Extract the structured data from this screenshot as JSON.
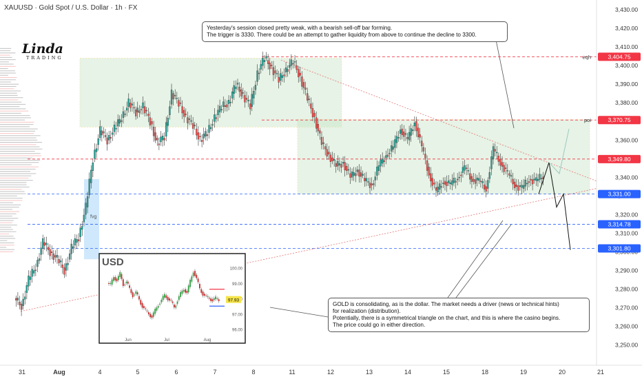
{
  "header": {
    "title": "XAUUSD · Gold Spot / U.S. Dollar · 1h · FX"
  },
  "logo": {
    "text": "Linda",
    "subtitle": "TRADING"
  },
  "annotations": {
    "top": [
      "Yesterday's session closed pretty weak, with a bearish sell-off bar forming.",
      "The trigger is 3330. There could be an attempt to gather liquidity from above to continue the decline to 3300."
    ],
    "bottom": [
      "GOLD is consolidating, as is the dollar. The market needs a driver (news or technical hints)",
      "for realization (distribution).",
      "Potentially, there is a symmetrical triangle on the chart, and this is where the casino begins.",
      "The price could go in either direction."
    ]
  },
  "colors": {
    "up": "#26a69a",
    "down": "#ef5350",
    "zone": "#c8e6c9",
    "level_red": "#f23645",
    "level_blue": "#2962ff",
    "axis_text": "#333333"
  },
  "chart_data": {
    "type": "candlestick",
    "symbol": "XAUUSD",
    "timeframe": "1h",
    "y_ticks": [
      3250,
      3260,
      3270,
      3280,
      3290,
      3300,
      3310,
      3320,
      3330,
      3340,
      3350,
      3360,
      3370,
      3380,
      3390,
      3400,
      3410,
      3420,
      3430
    ],
    "y_tick_labels": [
      "3,250.00",
      "3,260.00",
      "3,270.00",
      "3,280.00",
      "3,290.00",
      "3,300.00",
      "3,310.00",
      "3,320.00",
      "3,330.00",
      "3,340.00",
      "3,350.00",
      "3,360.00",
      "3,370.00",
      "3,380.00",
      "3,390.00",
      "3,400.00",
      "3,410.00",
      "3,420.00",
      "3,430.00"
    ],
    "ylim": [
      3245,
      3433
    ],
    "x_ticks": [
      "31",
      "Aug",
      "4",
      "5",
      "6",
      "7",
      "8",
      "11",
      "12",
      "13",
      "14",
      "15",
      "18",
      "19",
      "20",
      "21"
    ],
    "price_labels": [
      {
        "value": 3404.75,
        "label": "3,404.75",
        "color": "red",
        "tag": "eqh"
      },
      {
        "value": 3370.75,
        "label": "3,370.75",
        "color": "red",
        "tag": "poi"
      },
      {
        "value": 3349.8,
        "label": "3,349.80",
        "color": "red",
        "tag": ""
      },
      {
        "value": 3331.0,
        "label": "3,331.00",
        "color": "blue",
        "tag": ""
      },
      {
        "value": 3314.78,
        "label": "3,314.78",
        "color": "blue",
        "tag": ""
      },
      {
        "value": 3301.8,
        "label": "3,301.80",
        "color": "blue",
        "tag": ""
      }
    ],
    "zones": [
      {
        "name": "upper-range",
        "from_day": "4",
        "to_day": "11",
        "low": 3367,
        "high": 3404
      },
      {
        "name": "consolidation-range",
        "from_day": "11",
        "to_day": "21",
        "low": 3331,
        "high": 3371
      }
    ],
    "text_labels": [
      "eqh",
      "poi",
      "fvg"
    ],
    "closes": [
      3271,
      3285,
      3292,
      3305,
      3300,
      3296,
      3290,
      3302,
      3308,
      3324,
      3350,
      3365,
      3360,
      3366,
      3372,
      3380,
      3375,
      3378,
      3370,
      3358,
      3362,
      3385,
      3380,
      3372,
      3368,
      3360,
      3364,
      3372,
      3378,
      3380,
      3390,
      3384,
      3378,
      3396,
      3404,
      3399,
      3392,
      3398,
      3402,
      3394,
      3382,
      3372,
      3358,
      3352,
      3346,
      3348,
      3340,
      3344,
      3338,
      3336,
      3346,
      3352,
      3356,
      3366,
      3360,
      3370,
      3356,
      3342,
      3332,
      3338,
      3336,
      3340,
      3345,
      3339,
      3338,
      3334,
      3355,
      3348,
      3342,
      3336,
      3334,
      3339,
      3338,
      3341
    ],
    "inset": {
      "title": "USD",
      "y_tick_labels": [
        "100.00",
        "99.00",
        "98.00",
        "97.00",
        "96.00"
      ],
      "x_tick_labels": [
        "Jun",
        "Jul",
        "Aug"
      ],
      "current_label": "97.93",
      "closes": [
        98.9,
        99.4,
        99.2,
        99.6,
        98.9,
        99.1,
        98.6,
        98.2,
        98.4,
        97.9,
        97.5,
        97.2,
        97.0,
        96.8,
        97.2,
        97.6,
        97.9,
        98.2,
        98.0,
        97.8,
        97.4,
        97.9,
        98.3,
        98.6,
        98.4,
        99.1,
        99.8,
        99.3,
        98.6,
        98.3,
        98.1,
        98.0,
        97.9,
        98.0,
        97.9
      ]
    }
  }
}
